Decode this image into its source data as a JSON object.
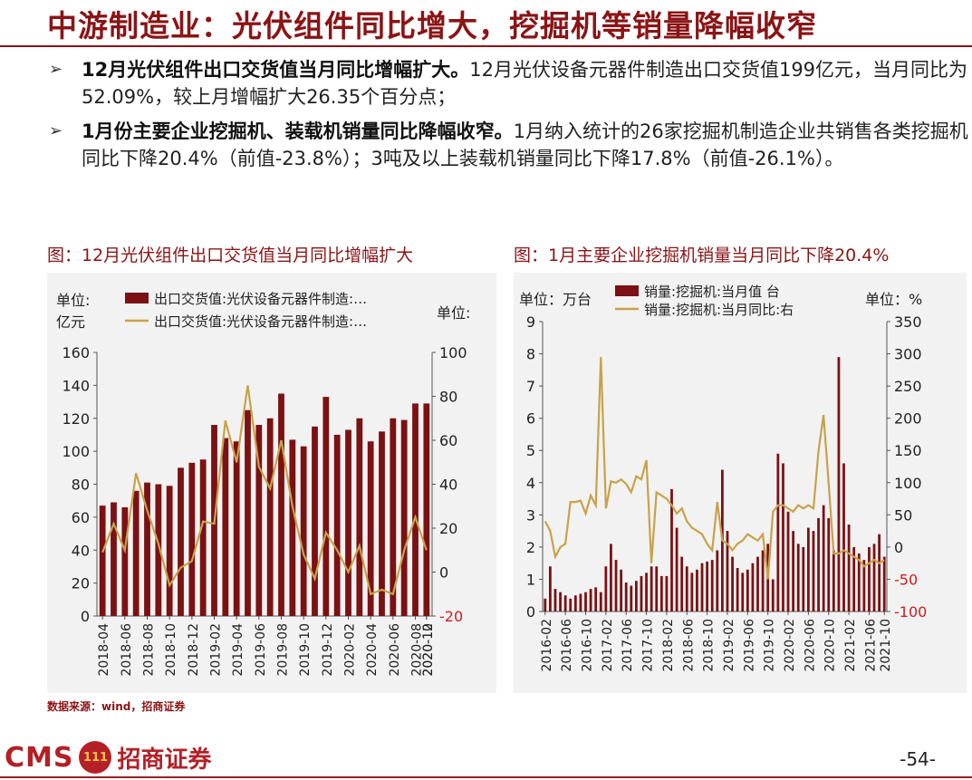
{
  "header": {
    "title": "中游制造业：光伏组件同比增大，挖掘机等销量降幅收窄"
  },
  "bullets": [
    {
      "bold": "12月光伏组件出口交货值当月同比增幅扩大。",
      "text": "12月光伏设备元器件制造出口交货值199亿元，当月同比为52.09%，较上月增幅扩大26.35个百分点；"
    },
    {
      "bold": "1月份主要企业挖掘机、装载机销量同比降幅收窄。",
      "text": "1月纳入统计的26家挖掘机制造企业共销售各类挖掘机同比下降20.4%（前值-23.8%）；3吨及以上装载机销量同比下降17.8%（前值-26.1%）。"
    }
  ],
  "left_panel": {
    "title": "图：12月光伏组件出口交货值当月同比增幅扩大"
  },
  "right_panel": {
    "title": "图：1月主要企业挖掘机销量当月同比下降20.4%"
  },
  "source": "数据来源：wind，招商证券",
  "footer": {
    "logo_en": "CMS",
    "logo_badge": "111",
    "logo_cn": "招商证券",
    "page": "-54-"
  },
  "colors": {
    "bar": "#7b1113",
    "line": "#c8a24a",
    "title": "#8b1416",
    "neg_tick": "#d01b1b",
    "panel_bg": "#f2f2f2"
  },
  "chart_data": [
    {
      "type": "bar",
      "unit_left": [
        "单位:",
        "亿元"
      ],
      "unit_right": "单位:",
      "series": [
        {
          "name": "出口交货值:光伏设备元器件制造:…",
          "type": "bar",
          "axis": "left",
          "values": [
            67,
            69,
            66,
            76,
            81,
            80,
            79,
            90,
            93,
            95,
            116,
            108,
            106,
            125,
            116,
            120,
            135,
            107,
            103,
            115,
            133,
            110,
            113,
            120,
            106,
            112,
            120,
            119,
            129,
            129
          ]
        },
        {
          "name": "出口交货值:光伏设备元器件制造:…",
          "type": "line",
          "axis": "right",
          "values": [
            9,
            22,
            10,
            45,
            28,
            13,
            -6,
            2,
            5,
            23,
            22,
            69,
            50,
            85,
            48,
            38,
            60,
            30,
            8,
            -3,
            18,
            10,
            0,
            12,
            -10,
            -8,
            -10,
            10,
            25,
            10
          ]
        }
      ],
      "x_ticks": [
        "2018-04",
        "2018-06",
        "2018-08",
        "2018-10",
        "2018-12",
        "2019-02",
        "2019-04",
        "2019-06",
        "2019-08",
        "2019-10",
        "2019-12",
        "2020-02",
        "2020-04",
        "2020-06",
        "2020-08",
        "2020-10",
        "2020-12"
      ],
      "y_left": {
        "min": 0,
        "max": 160,
        "ticks": [
          "0",
          "20",
          "40",
          "60",
          "80",
          "100",
          "120",
          "140",
          "160"
        ]
      },
      "y_right": {
        "min": -20,
        "max": 100,
        "ticks": [
          "-20",
          "0",
          "20",
          "40",
          "60",
          "80",
          "100"
        ]
      },
      "grid": false,
      "legend": "top"
    },
    {
      "type": "bar",
      "unit_left": "单位：万台",
      "unit_right": "单位：%",
      "series": [
        {
          "name": "销量:挖掘机:当月值 台",
          "type": "bar",
          "axis": "left",
          "values": [
            0.4,
            1.4,
            0.7,
            0.6,
            0.5,
            0.4,
            0.5,
            0.55,
            0.6,
            0.7,
            0.75,
            0.6,
            1.4,
            2.1,
            1.6,
            1.3,
            0.9,
            0.8,
            0.95,
            1.1,
            1.2,
            1.4,
            1.4,
            1.1,
            1.1,
            3.8,
            2.6,
            1.7,
            1.4,
            1.2,
            1.3,
            1.5,
            1.55,
            1.6,
            1.9,
            4.4,
            2.5,
            1.7,
            1.35,
            1.2,
            1.3,
            1.5,
            1.7,
            1.9,
            2.1,
            1.0,
            4.9,
            4.6,
            3.1,
            2.5,
            2.1,
            2.0,
            2.6,
            2.5,
            2.9,
            3.3,
            2.9,
            1.9,
            7.9,
            4.6,
            2.7,
            2.0,
            1.8,
            1.6,
            2.0,
            2.1,
            2.4,
            1.7
          ]
        },
        {
          "name": "销量:挖掘机:当月同比:右",
          "type": "line",
          "axis": "right",
          "values": [
            40,
            25,
            -15,
            0,
            5,
            70,
            70,
            72,
            52,
            80,
            65,
            295,
            60,
            102,
            100,
            105,
            98,
            85,
            110,
            105,
            135,
            -25,
            85,
            80,
            75,
            65,
            52,
            60,
            40,
            30,
            25,
            20,
            5,
            -5,
            70,
            10,
            5,
            -5,
            5,
            10,
            20,
            15,
            10,
            20,
            -50,
            55,
            65,
            65,
            60,
            55,
            65,
            60,
            65,
            60,
            150,
            205,
            100,
            -10,
            -10,
            -5,
            -10,
            -15,
            -20,
            -30,
            -25,
            -20,
            -25,
            -20
          ]
        }
      ],
      "x_ticks": [
        "2016-02",
        "2016-06",
        "2016-10",
        "2017-02",
        "2017-06",
        "2017-10",
        "2018-02",
        "2018-06",
        "2018-10",
        "2019-02",
        "2019-06",
        "2019-10",
        "2020-02",
        "2020-06",
        "2020-10",
        "2021-02",
        "2021-06",
        "2021-10"
      ],
      "y_left": {
        "min": 0,
        "max": 9,
        "ticks": [
          "0",
          "1",
          "2",
          "3",
          "4",
          "5",
          "6",
          "7",
          "8",
          "9"
        ]
      },
      "y_right": {
        "min": -100,
        "max": 350,
        "ticks": [
          "-100",
          "-50",
          "0",
          "50",
          "100",
          "150",
          "200",
          "250",
          "300",
          "350"
        ]
      },
      "grid": false,
      "legend": "top"
    }
  ]
}
